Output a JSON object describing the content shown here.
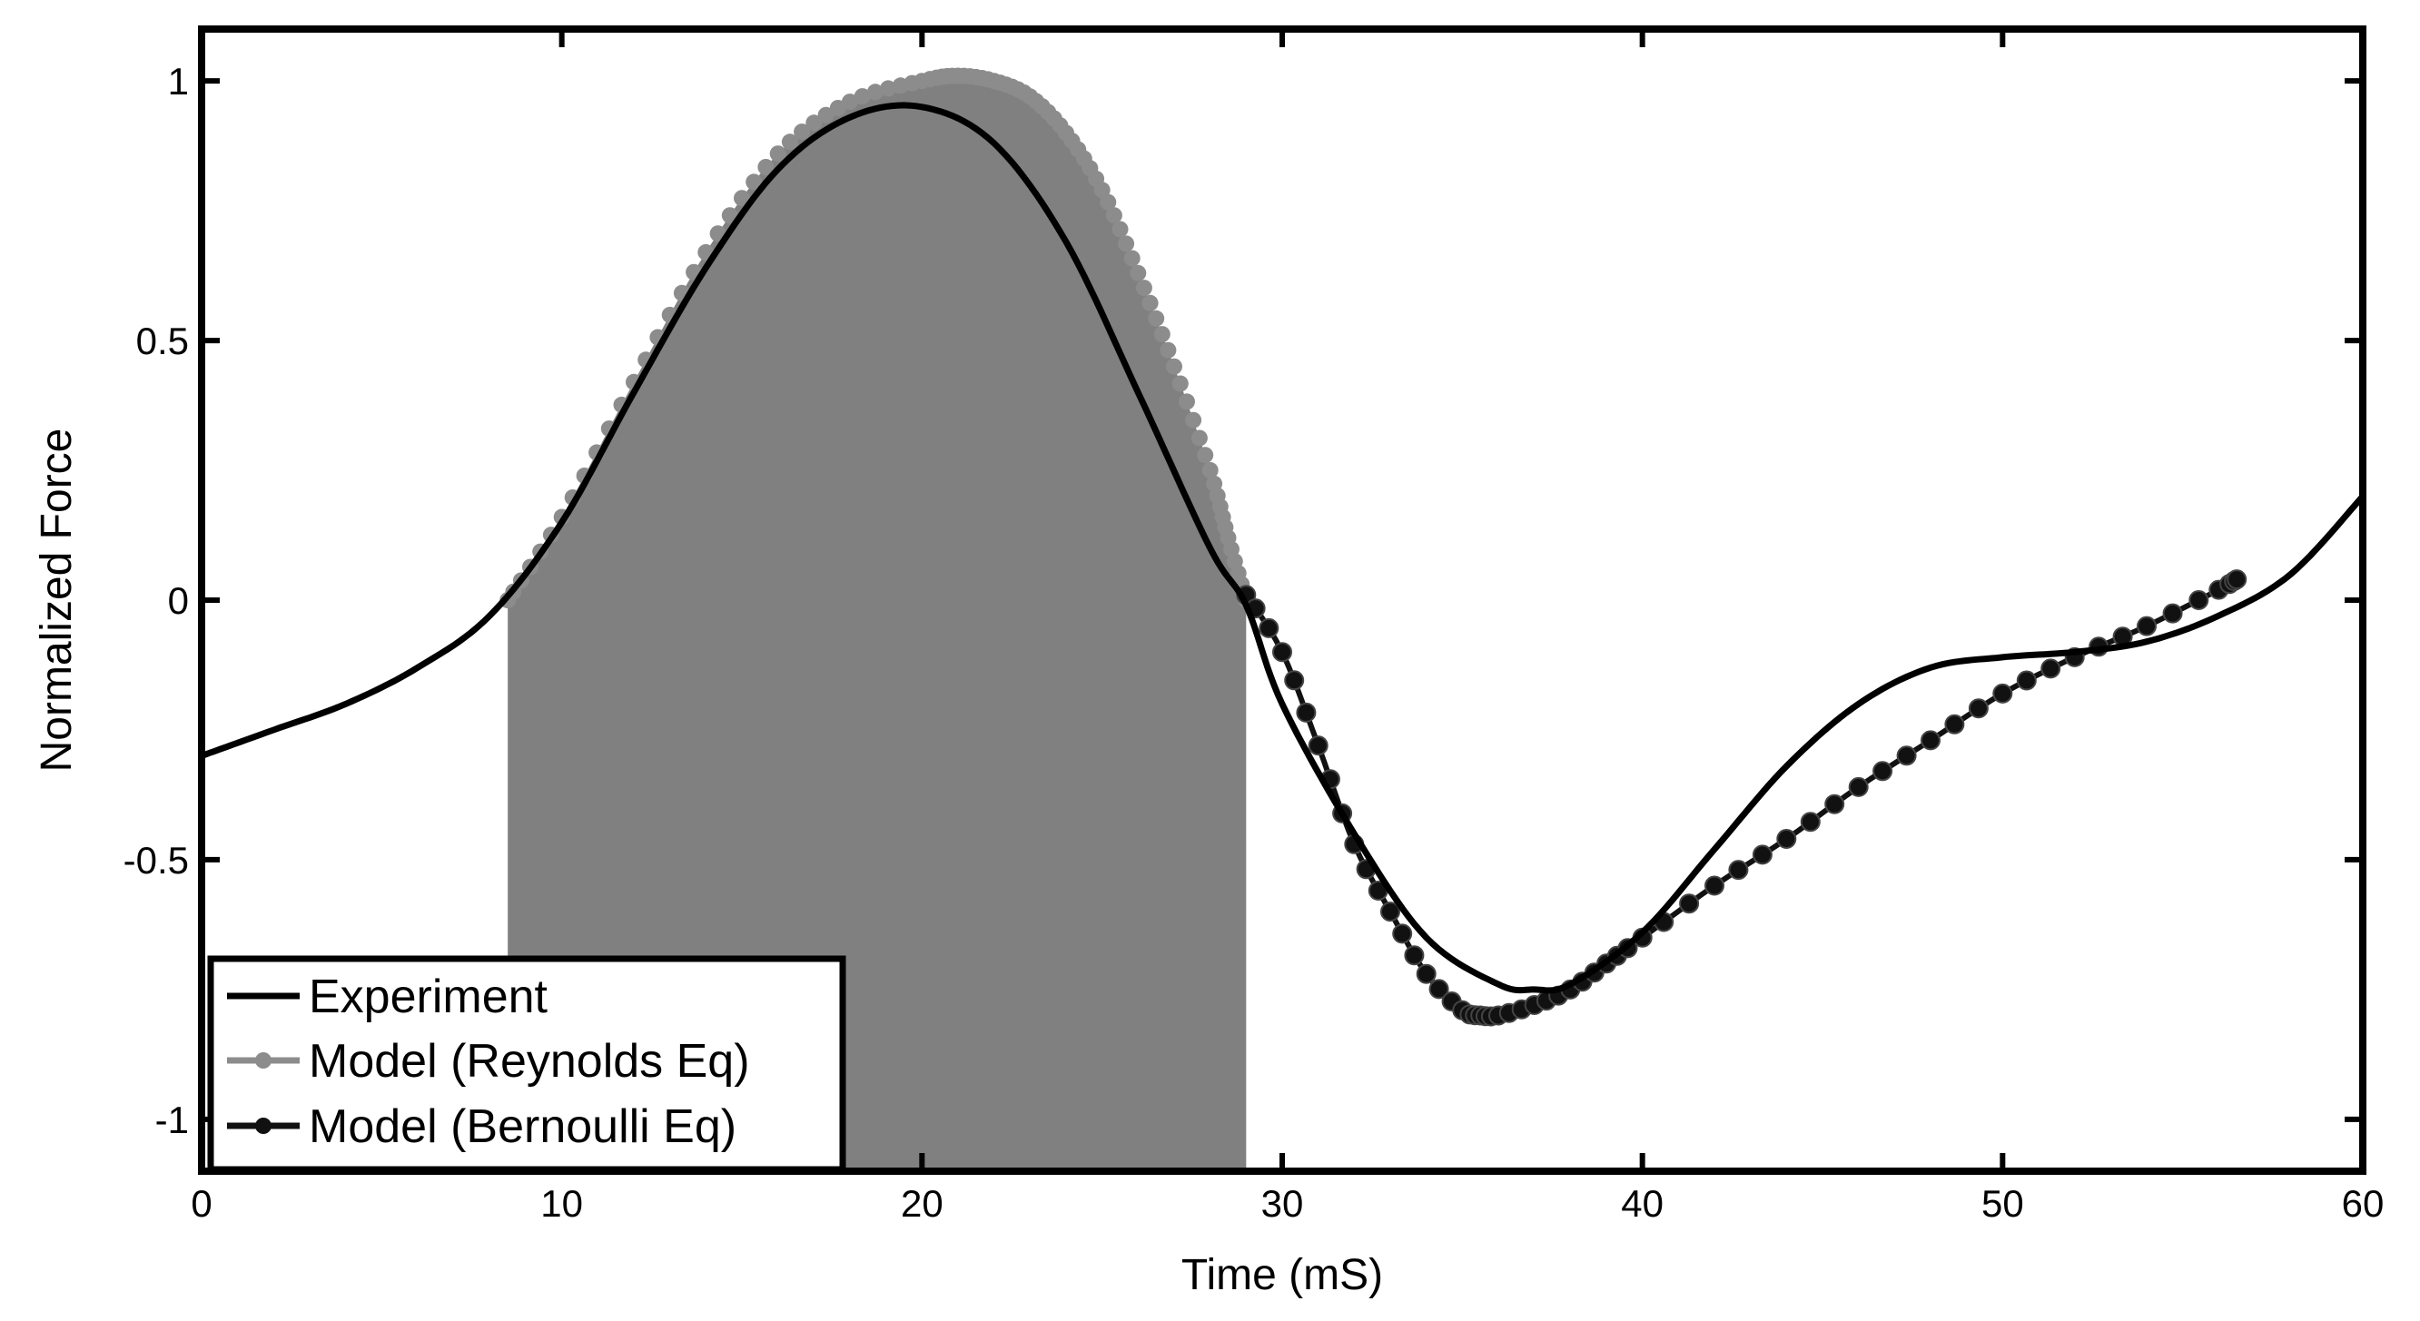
{
  "chart_data": {
    "type": "line",
    "title": "",
    "xlabel": "Time (mS)",
    "ylabel": "Normalized Force",
    "xlim": [
      0,
      60
    ],
    "ylim": [
      -1.1,
      1.1
    ],
    "xticks": [
      0,
      10,
      20,
      30,
      40,
      50,
      60
    ],
    "xtick_labels": [
      "0",
      "10",
      "20",
      "30",
      "40",
      "50",
      "60"
    ],
    "yticks": [
      1,
      0.5,
      0,
      -0.5,
      -1
    ],
    "ytick_labels": [
      "1",
      "0.5",
      "0",
      "-0.5",
      "-1"
    ],
    "grid": false,
    "legend_position": "bottom-left",
    "colors": {
      "experiment": "#000000",
      "reynolds_line": "#8c8c8c",
      "reynolds_fill": "#808080",
      "bernoulli": "#111111"
    },
    "series": [
      {
        "name": "Experiment",
        "style": "solid-line",
        "x": [
          0,
          2,
          4,
          6,
          8,
          10,
          12,
          14,
          16,
          18,
          20,
          22,
          24,
          26,
          28,
          29,
          30,
          32,
          34,
          36,
          37,
          38,
          40,
          42,
          44,
          46,
          48,
          50,
          52,
          54,
          56,
          58,
          60
        ],
        "y": [
          -0.3,
          -0.25,
          -0.2,
          -0.13,
          -0.03,
          0.15,
          0.4,
          0.64,
          0.83,
          0.93,
          0.95,
          0.88,
          0.69,
          0.4,
          0.1,
          -0.01,
          -0.2,
          -0.45,
          -0.65,
          -0.74,
          -0.75,
          -0.74,
          -0.64,
          -0.48,
          -0.32,
          -0.2,
          -0.13,
          -0.11,
          -0.1,
          -0.08,
          -0.03,
          0.05,
          0.2
        ]
      },
      {
        "name": "Model (Reynolds Eq)",
        "style": "filled-area-with-markers",
        "x": [
          8.5,
          10,
          12,
          14,
          16,
          18,
          20,
          21,
          22,
          23,
          24,
          25,
          26,
          27,
          28,
          28.5,
          29
        ],
        "y": [
          0.0,
          0.16,
          0.42,
          0.67,
          0.86,
          0.96,
          1.0,
          1.01,
          1.0,
          0.97,
          0.9,
          0.79,
          0.63,
          0.45,
          0.25,
          0.12,
          0.0
        ]
      },
      {
        "name": "Model (Bernoulli Eq)",
        "style": "line-with-markers",
        "x": [
          29,
          30,
          31,
          32,
          33,
          34,
          35,
          35.5,
          36,
          37,
          38,
          39,
          40,
          42,
          44,
          46,
          48,
          50,
          52,
          54,
          56,
          56.5
        ],
        "y": [
          0.01,
          -0.1,
          -0.28,
          -0.47,
          -0.6,
          -0.72,
          -0.79,
          -0.8,
          -0.8,
          -0.78,
          -0.75,
          -0.7,
          -0.65,
          -0.55,
          -0.46,
          -0.36,
          -0.27,
          -0.18,
          -0.11,
          -0.05,
          0.02,
          0.04
        ]
      }
    ],
    "legend": {
      "entries": [
        "Experiment",
        "Model (Reynolds Eq)",
        "Model (Bernoulli Eq)"
      ]
    }
  }
}
